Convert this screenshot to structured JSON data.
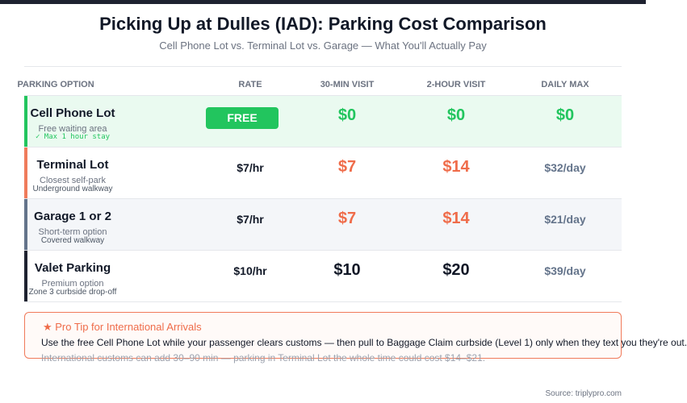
{
  "header": {
    "title": "Picking Up at Dulles (IAD): Parking Cost Comparison",
    "subtitle": "Cell Phone Lot vs. Terminal Lot vs. Garage — What You'll Actually Pay"
  },
  "table": {
    "columns": [
      "PARKING OPTION",
      "RATE",
      "30-MIN VISIT",
      "2-HOUR VISIT",
      "DAILY MAX"
    ],
    "rows": [
      {
        "name": "Cell Phone Lot",
        "note": "Free waiting area",
        "detail": "✓ Max 1 hour stay",
        "rate": "FREE",
        "visit_30": "$0",
        "visit_2h": "$0",
        "daily": "$0"
      },
      {
        "name": "Terminal Lot",
        "note": "Closest self-park",
        "detail": "Underground walkway",
        "rate": "$7/hr",
        "visit_30": "$7",
        "visit_2h": "$14",
        "daily": "$32/day"
      },
      {
        "name": "Garage 1 or 2",
        "note": "Short-term option",
        "detail": "Covered walkway",
        "rate": "$7/hr",
        "visit_30": "$7",
        "visit_2h": "$14",
        "daily": "$21/day"
      },
      {
        "name": "Valet Parking",
        "note": "Premium option",
        "detail": "Zone 3 curbside drop-off",
        "rate": "$10/hr",
        "visit_30": "$10",
        "visit_2h": "$20",
        "daily": "$39/day"
      }
    ]
  },
  "tip": {
    "title": "★ Pro Tip for International Arrivals",
    "lines": [
      "Use the free Cell Phone Lot while your passenger clears customs — then pull to Baggage Claim curbside (Level 1) only when they text you they're out.",
      "International customs can add 30–90 min — parking in Terminal Lot the whole time could cost $14–$21."
    ]
  },
  "source": "Source: triplypro.com"
}
